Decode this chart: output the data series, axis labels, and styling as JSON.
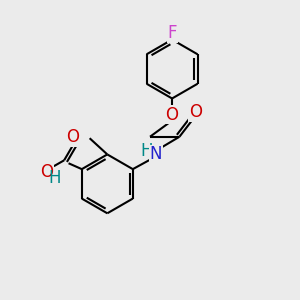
{
  "bg_color": "#ebebeb",
  "bond_color": "#000000",
  "atom_colors": {
    "F": "#cc44cc",
    "O": "#cc0000",
    "N": "#2222cc",
    "OH_color": "#008888",
    "H_color": "#008888"
  },
  "bond_width": 1.5,
  "font_size": 12
}
